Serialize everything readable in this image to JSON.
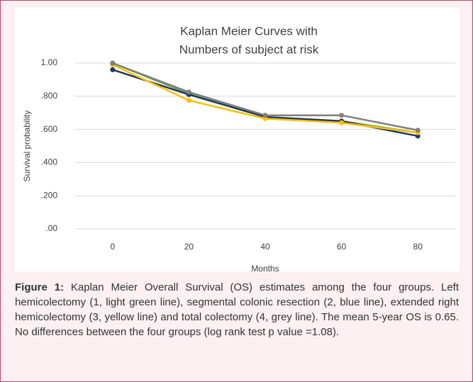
{
  "chart_data": {
    "type": "line",
    "title": [
      "Kaplan Meier Curves with",
      "Numbers of subject at risk"
    ],
    "xlabel": "Months",
    "ylabel": "Survival probability",
    "categories": [
      "0",
      "20",
      "40",
      "60",
      "80"
    ],
    "series": [
      {
        "name": "1",
        "color": "#70ad47",
        "values": [
          1.0,
          0.815,
          0.675,
          0.65,
          0.58
        ]
      },
      {
        "name": "2",
        "color": "#1f3864",
        "values": [
          0.96,
          0.81,
          0.675,
          0.65,
          0.56
        ]
      },
      {
        "name": "3",
        "color": "#ffc000",
        "values": [
          0.99,
          0.775,
          0.665,
          0.64,
          0.58
        ]
      },
      {
        "name": "4",
        "color": "#7f7f7f",
        "values": [
          1.0,
          0.825,
          0.685,
          0.685,
          0.595
        ]
      }
    ],
    "ylim": [
      0,
      1
    ],
    "yticks": [
      {
        "value": 0,
        "label": ".00"
      },
      {
        "value": 0.2,
        "label": ".200"
      },
      {
        "value": 0.4,
        "label": ".400"
      },
      {
        "value": 0.6,
        "label": ".600"
      },
      {
        "value": 0.8,
        "label": ".800"
      },
      {
        "value": 1,
        "label": "1.00"
      }
    ],
    "grid": true,
    "legend": "bottom"
  },
  "caption": {
    "label": "Figure 1:",
    "text": "Kaplan Meier Overall Survival (OS) estimates among the four groups. Left hemicolectomy (1, light green line), segmental colonic resection (2, blue line), extended right hemicolectomy (3, yellow line) and total colectomy (4, grey line). The mean 5-year OS is 0.65. No differences between the four groups (log rank test p value =1.08)."
  }
}
